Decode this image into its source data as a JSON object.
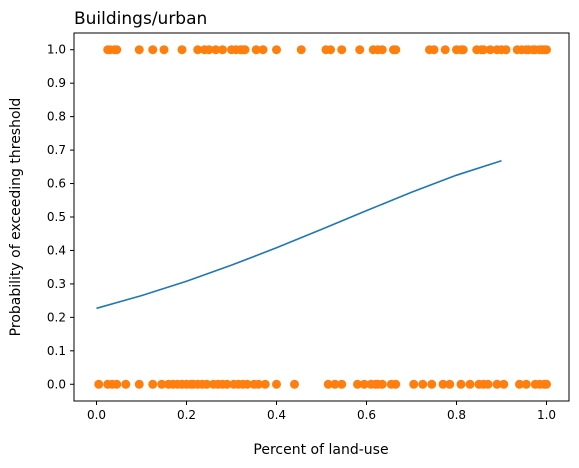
{
  "chart_data": {
    "type": "scatter",
    "title": "Buildings/urban",
    "xlabel": "Percent of land-use",
    "ylabel": "Probability of exceeding threshold",
    "xlim": [
      -0.05,
      1.05
    ],
    "ylim": [
      -0.05,
      1.05
    ],
    "xticks": [
      0.0,
      0.2,
      0.4,
      0.6,
      0.8,
      1.0
    ],
    "xtick_labels": [
      "0.0",
      "0.2",
      "0.4",
      "0.6",
      "0.8",
      "1.0"
    ],
    "yticks": [
      0.0,
      0.1,
      0.2,
      0.3,
      0.4,
      0.5,
      0.6,
      0.7,
      0.8,
      0.9,
      1.0
    ],
    "ytick_labels": [
      "0.0",
      "0.1",
      "0.2",
      "0.3",
      "0.4",
      "0.5",
      "0.6",
      "0.7",
      "0.8",
      "0.9",
      "1.0"
    ],
    "grid": false,
    "legend": "none",
    "series": [
      {
        "kind": "line",
        "color": "#1f77b4",
        "x": [
          0.0,
          0.1,
          0.2,
          0.3,
          0.4,
          0.5,
          0.6,
          0.7,
          0.8,
          0.9
        ],
        "y": [
          0.227,
          0.265,
          0.308,
          0.356,
          0.408,
          0.463,
          0.519,
          0.574,
          0.625,
          0.668
        ]
      },
      {
        "kind": "scatter",
        "color": "#ff7f0e",
        "points_y1": [
          0.025,
          0.03,
          0.04,
          0.045,
          0.095,
          0.125,
          0.15,
          0.19,
          0.225,
          0.24,
          0.25,
          0.265,
          0.28,
          0.3,
          0.31,
          0.32,
          0.325,
          0.33,
          0.355,
          0.37,
          0.4,
          0.455,
          0.51,
          0.52,
          0.545,
          0.585,
          0.615,
          0.625,
          0.635,
          0.66,
          0.665,
          0.74,
          0.75,
          0.775,
          0.8,
          0.81,
          0.815,
          0.845,
          0.855,
          0.86,
          0.875,
          0.89,
          0.9,
          0.91,
          0.935,
          0.945,
          0.955,
          0.96,
          0.97,
          0.975,
          0.985,
          0.99,
          0.995,
          1.0
        ],
        "points_y0": [
          0.005,
          0.025,
          0.035,
          0.045,
          0.065,
          0.095,
          0.125,
          0.145,
          0.16,
          0.17,
          0.18,
          0.19,
          0.2,
          0.21,
          0.215,
          0.225,
          0.235,
          0.245,
          0.26,
          0.27,
          0.28,
          0.29,
          0.305,
          0.315,
          0.325,
          0.335,
          0.35,
          0.36,
          0.375,
          0.4,
          0.44,
          0.515,
          0.53,
          0.545,
          0.58,
          0.595,
          0.61,
          0.62,
          0.625,
          0.635,
          0.655,
          0.665,
          0.705,
          0.725,
          0.745,
          0.77,
          0.785,
          0.81,
          0.83,
          0.85,
          0.86,
          0.87,
          0.89,
          0.905,
          0.94,
          0.955,
          0.975,
          0.985,
          0.995,
          1.0
        ]
      }
    ]
  }
}
